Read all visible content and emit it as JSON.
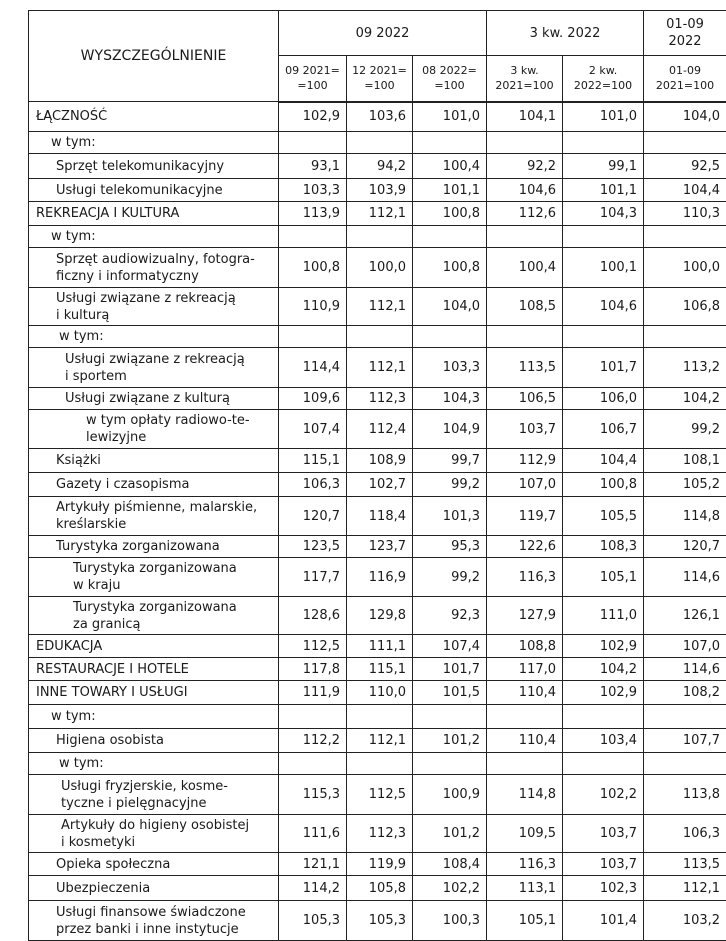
{
  "header": {
    "title": "WYSZCZEGÓLNIENIE",
    "groups": [
      "09 2022",
      "3 kw. 2022",
      "01-09\n2022"
    ],
    "columns": [
      "09 2021=\n=100",
      "12 2021=\n=100",
      "08 2022=\n=100",
      "3 kw.\n2021=100",
      "2 kw.\n2022=100",
      "01-09\n2021=100"
    ]
  },
  "rows": [
    {
      "label": "ŁĄCZNOŚĆ",
      "values": [
        "102,9",
        "103,6",
        "101,0",
        "104,1",
        "101,0",
        "104,0"
      ]
    },
    {
      "label": "w tym:"
    },
    {
      "label": "Sprzęt telekomunikacyjny",
      "values": [
        "93,1",
        "94,2",
        "100,4",
        "92,2",
        "99,1",
        "92,5"
      ]
    },
    {
      "label": "Usługi telekomunikacyjne",
      "values": [
        "103,3",
        "103,9",
        "101,1",
        "104,6",
        "101,1",
        "104,4"
      ]
    },
    {
      "label": "REKREACJA I KULTURA",
      "values": [
        "113,9",
        "112,1",
        "100,8",
        "112,6",
        "104,3",
        "110,3"
      ]
    },
    {
      "label": "w tym:"
    },
    {
      "label": "Sprzęt audiowizualny, fotogra-\nficzny i informatyczny",
      "values": [
        "100,8",
        "100,0",
        "100,8",
        "100,4",
        "100,1",
        "100,0"
      ]
    },
    {
      "label": "Usługi związane z rekreacją\ni kulturą",
      "values": [
        "110,9",
        "112,1",
        "104,0",
        "108,5",
        "104,6",
        "106,8"
      ]
    },
    {
      "label": "w tym:"
    },
    {
      "label": "Usługi związane z rekreacją\ni sportem",
      "values": [
        "114,4",
        "112,1",
        "103,3",
        "113,5",
        "101,7",
        "113,2"
      ]
    },
    {
      "label": "Usługi związane z kulturą",
      "values": [
        "109,6",
        "112,3",
        "104,3",
        "106,5",
        "106,0",
        "104,2"
      ]
    },
    {
      "label": "w tym opłaty radiowo-te-\nlewizyjne",
      "values": [
        "107,4",
        "112,4",
        "104,9",
        "103,7",
        "106,7",
        "99,2"
      ]
    },
    {
      "label": "Książki",
      "values": [
        "115,1",
        "108,9",
        "99,7",
        "112,9",
        "104,4",
        "108,1"
      ]
    },
    {
      "label": "Gazety i czasopisma",
      "values": [
        "106,3",
        "102,7",
        "99,2",
        "107,0",
        "100,8",
        "105,2"
      ]
    },
    {
      "label": "Artykuły piśmienne, malarskie,\nkreślarskie",
      "values": [
        "120,7",
        "118,4",
        "101,3",
        "119,7",
        "105,5",
        "114,8"
      ]
    },
    {
      "label": "Turystyka zorganizowana",
      "values": [
        "123,5",
        "123,7",
        "95,3",
        "122,6",
        "108,3",
        "120,7"
      ]
    },
    {
      "label": "Turystyka zorganizowana\nw kraju",
      "values": [
        "117,7",
        "116,9",
        "99,2",
        "116,3",
        "105,1",
        "114,6"
      ]
    },
    {
      "label": "Turystyka zorganizowana\nza granicą",
      "values": [
        "128,6",
        "129,8",
        "92,3",
        "127,9",
        "111,0",
        "126,1"
      ]
    },
    {
      "label": "EDUKACJA",
      "values": [
        "112,5",
        "111,1",
        "107,4",
        "108,8",
        "102,9",
        "107,0"
      ]
    },
    {
      "label": "RESTAURACJE I HOTELE",
      "values": [
        "117,8",
        "115,1",
        "101,7",
        "117,0",
        "104,2",
        "114,6"
      ]
    },
    {
      "label": "INNE TOWARY I USŁUGI",
      "values": [
        "111,9",
        "110,0",
        "101,5",
        "110,4",
        "102,9",
        "108,2"
      ]
    },
    {
      "label": "w tym:"
    },
    {
      "label": "Higiena osobista",
      "values": [
        "112,2",
        "112,1",
        "101,2",
        "110,4",
        "103,4",
        "107,7"
      ]
    },
    {
      "label": "w tym:"
    },
    {
      "label": "Usługi fryzjerskie, kosme-\ntyczne i pielęgnacyjne",
      "values": [
        "115,3",
        "112,5",
        "100,9",
        "114,8",
        "102,2",
        "113,8"
      ]
    },
    {
      "label": "Artykuły do higieny osobistej\ni kosmetyki",
      "values": [
        "111,6",
        "112,3",
        "101,2",
        "109,5",
        "103,7",
        "106,3"
      ]
    },
    {
      "label": "Opieka społeczna",
      "values": [
        "121,1",
        "119,9",
        "108,4",
        "116,3",
        "103,7",
        "113,5"
      ]
    },
    {
      "label": "Ubezpieczenia",
      "values": [
        "114,2",
        "105,8",
        "102,2",
        "113,1",
        "102,3",
        "112,1"
      ]
    },
    {
      "label": "Usługi finansowe świadczone\nprzez banki i inne instytucje",
      "values": [
        "105,3",
        "105,3",
        "100,3",
        "105,1",
        "101,4",
        "103,2"
      ]
    }
  ]
}
